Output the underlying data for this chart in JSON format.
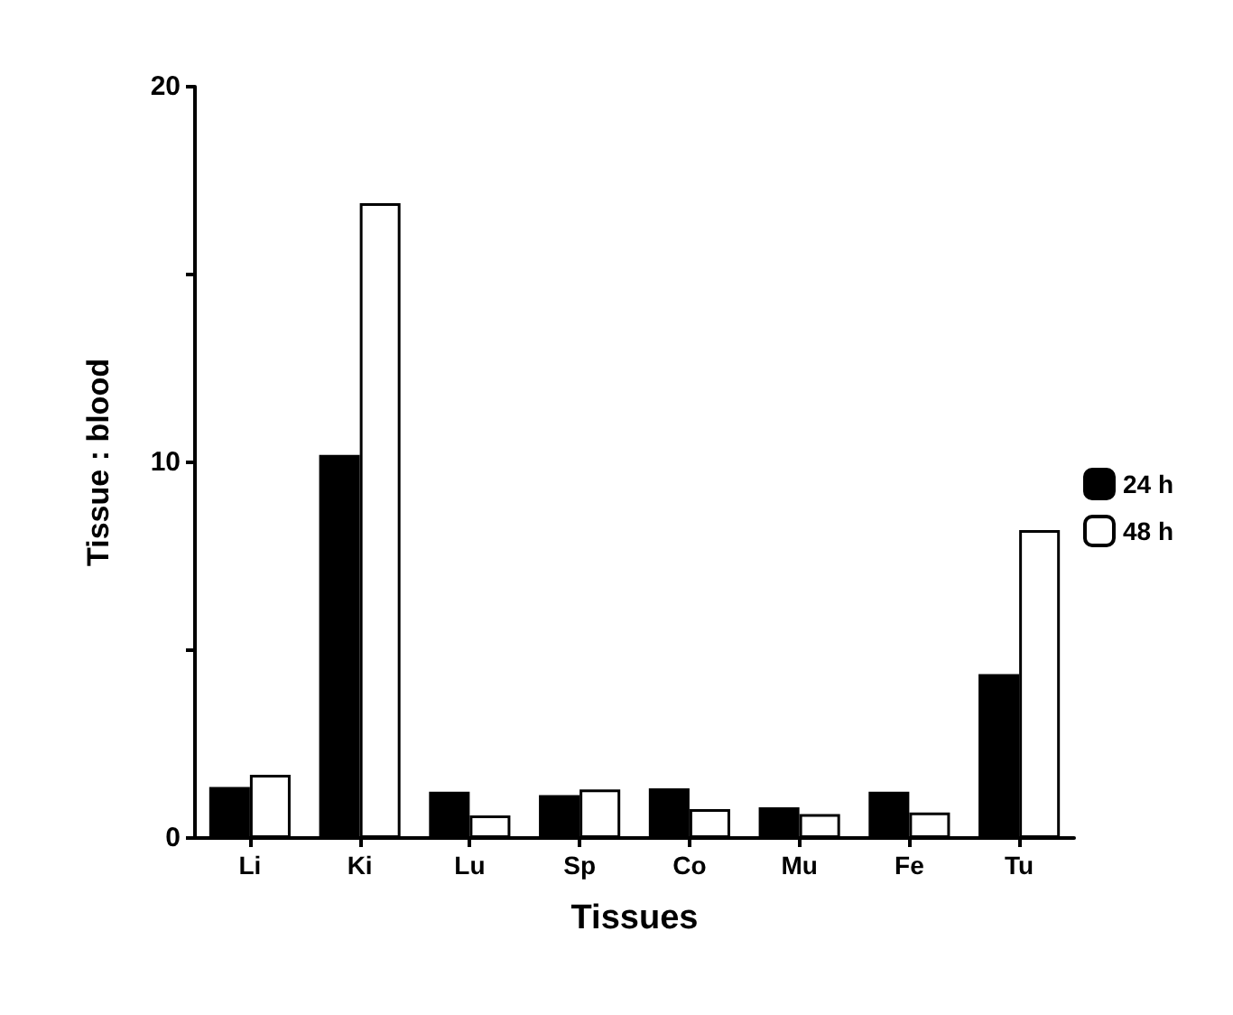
{
  "chart_data": {
    "type": "bar",
    "xlabel": "Tissues",
    "ylabel": "Tissue : blood",
    "categories": [
      "Li",
      "Ki",
      "Lu",
      "Sp",
      "Co",
      "Mu",
      "Fe",
      "Tu"
    ],
    "series": [
      {
        "name": "24 h",
        "color": "#000000",
        "values": [
          1.36,
          10.2,
          1.23,
          1.14,
          1.32,
          0.82,
          1.23,
          4.36
        ]
      },
      {
        "name": "48 h",
        "color": "#ffffff",
        "values": [
          1.68,
          16.9,
          0.6,
          1.29,
          0.77,
          0.64,
          0.68,
          8.2
        ]
      }
    ],
    "ylim": [
      0,
      20
    ],
    "yticks": [
      0,
      {
        "value": 5,
        "label": null
      },
      10,
      {
        "value": 15,
        "label": null
      },
      20
    ],
    "grid": false,
    "legend": "right"
  }
}
